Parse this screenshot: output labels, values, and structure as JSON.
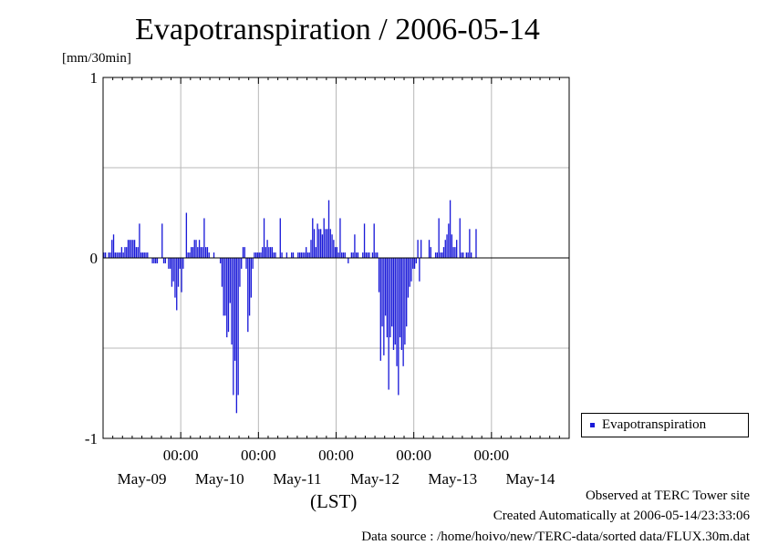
{
  "chart_data": {
    "type": "bar",
    "title": "Evapotranspiration / 2006-05-14",
    "ylabel": "[mm/30min]",
    "xlabel": "(LST)",
    "ylim": [
      -1,
      1
    ],
    "yticks": [
      {
        "value": 1,
        "label": "1"
      },
      {
        "value": 0,
        "label": "0"
      },
      {
        "value": -1,
        "label": "-1"
      }
    ],
    "xlim_days": [
      0,
      6
    ],
    "xticks": [
      {
        "day": 1,
        "time": "00:00"
      },
      {
        "day": 2,
        "time": "00:00"
      },
      {
        "day": 3,
        "time": "00:00"
      },
      {
        "day": 4,
        "time": "00:00"
      },
      {
        "day": 5,
        "time": "00:00"
      }
    ],
    "date_labels": [
      {
        "day": 0.5,
        "label": "May-09"
      },
      {
        "day": 1.5,
        "label": "May-10"
      },
      {
        "day": 2.5,
        "label": "May-11"
      },
      {
        "day": 3.5,
        "label": "May-12"
      },
      {
        "day": 4.5,
        "label": "May-13"
      },
      {
        "day": 5.5,
        "label": "May-14"
      }
    ],
    "grid": true,
    "legend_position": "right-bottom",
    "series": [
      {
        "name": "Evapotranspiration",
        "color": "#1a1ad8",
        "interval_minutes": 30,
        "values": [
          0.03,
          0.03,
          0.0,
          0.03,
          0.03,
          0.1,
          0.13,
          0.03,
          0.03,
          0.03,
          0.03,
          0.06,
          0.03,
          0.06,
          0.06,
          0.1,
          0.1,
          0.1,
          0.1,
          0.1,
          0.06,
          0.06,
          0.19,
          0.03,
          0.03,
          0.03,
          0.03,
          0.03,
          0.0,
          0.0,
          -0.03,
          -0.03,
          -0.03,
          -0.03,
          0.0,
          0.0,
          0.19,
          -0.03,
          -0.03,
          0.0,
          -0.06,
          -0.06,
          -0.16,
          -0.13,
          -0.22,
          -0.29,
          -0.16,
          -0.06,
          -0.19,
          -0.06,
          0.0,
          0.25,
          0.03,
          0.03,
          0.06,
          0.06,
          0.1,
          0.1,
          0.06,
          0.1,
          0.06,
          0.06,
          0.22,
          0.06,
          0.06,
          0.03,
          0.0,
          0.0,
          0.03,
          0.0,
          0.0,
          0.0,
          -0.03,
          -0.16,
          -0.32,
          -0.32,
          -0.44,
          -0.41,
          -0.25,
          -0.48,
          -0.76,
          -0.57,
          -0.86,
          -0.76,
          -0.16,
          -0.06,
          0.06,
          0.06,
          -0.06,
          -0.41,
          -0.32,
          -0.22,
          -0.06,
          0.03,
          0.03,
          0.03,
          0.03,
          0.03,
          0.06,
          0.22,
          0.06,
          0.1,
          0.06,
          0.06,
          0.06,
          0.03,
          0.03,
          0.0,
          0.0,
          0.22,
          0.03,
          0.0,
          0.0,
          0.03,
          0.0,
          0.0,
          0.03,
          0.03,
          0.0,
          0.0,
          0.03,
          0.03,
          0.03,
          0.03,
          0.03,
          0.06,
          0.03,
          0.03,
          0.1,
          0.22,
          0.16,
          0.06,
          0.19,
          0.16,
          0.16,
          0.13,
          0.22,
          0.16,
          0.16,
          0.32,
          0.16,
          0.13,
          0.1,
          0.06,
          0.06,
          0.03,
          0.22,
          0.03,
          0.03,
          0.03,
          0.0,
          -0.03,
          0.0,
          0.03,
          0.03,
          0.13,
          0.03,
          0.03,
          0.0,
          0.0,
          0.03,
          0.19,
          0.03,
          0.03,
          0.03,
          0.0,
          0.03,
          0.19,
          0.03,
          0.03,
          -0.19,
          -0.57,
          -0.38,
          -0.54,
          -0.32,
          -0.44,
          -0.73,
          -0.44,
          -0.38,
          -0.51,
          -0.48,
          -0.6,
          -0.76,
          -0.44,
          -0.51,
          -0.6,
          -0.48,
          -0.38,
          -0.22,
          -0.16,
          -0.13,
          -0.06,
          -0.06,
          -0.03,
          0.1,
          -0.13,
          0.1,
          0.0,
          0.0,
          0.0,
          0.0,
          0.1,
          0.06,
          0.0,
          0.0,
          0.03,
          0.03,
          0.22,
          0.03,
          0.03,
          0.06,
          0.1,
          0.13,
          0.19,
          0.32,
          0.13,
          0.06,
          0.06,
          0.1,
          0.0,
          0.22,
          0.03,
          0.03,
          0.0,
          0.03,
          0.03,
          0.16,
          0.03,
          0.0,
          0.0,
          0.16,
          0.0,
          0.0,
          0.0
        ]
      }
    ]
  },
  "legend": {
    "label": "Evapotranspiration"
  },
  "footer": {
    "site": "Observed at TERC Tower site",
    "created": "Created Automatically at 2006-05-14/23:33:06",
    "source": "Data source : /home/hoivo/new/TERC-data/sorted  data/FLUX.30m.dat"
  }
}
